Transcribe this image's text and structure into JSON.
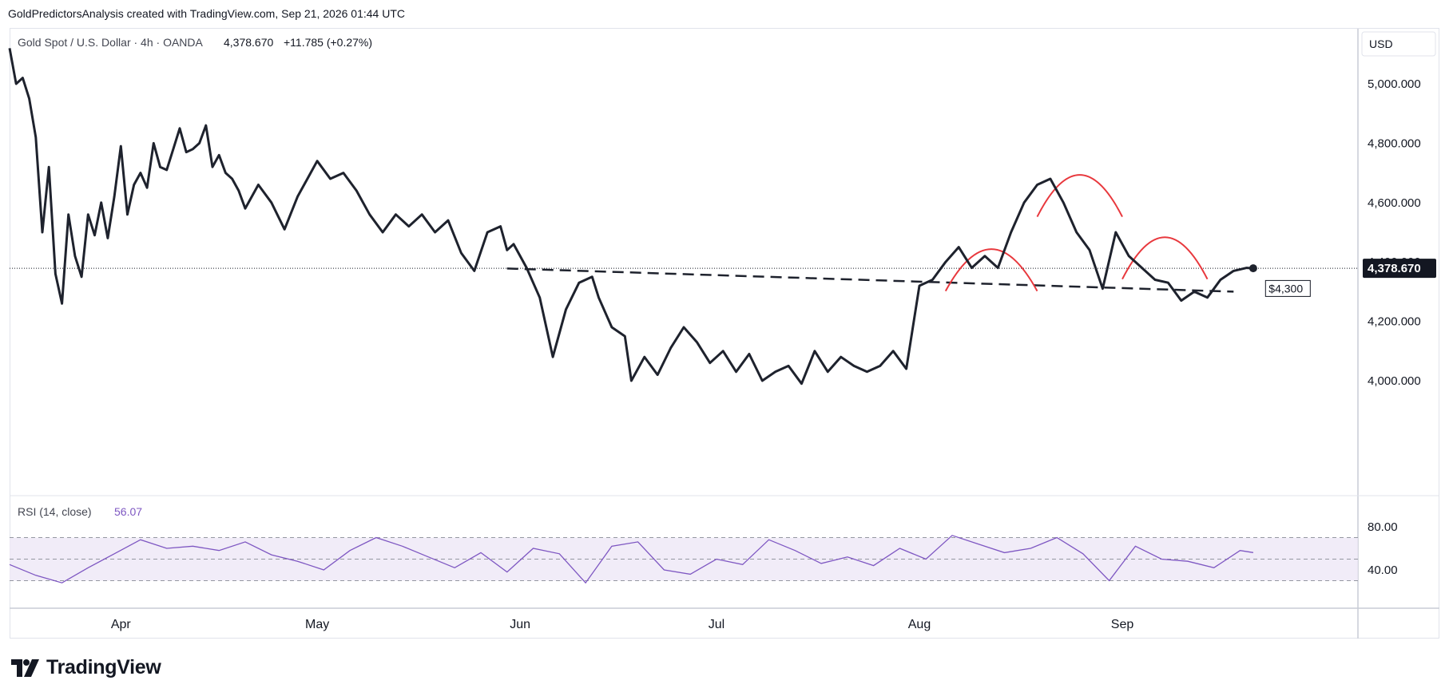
{
  "header": {
    "text": "GoldPredictorsAnalysis created with TradingView.com, Sep 21, 2026 01:44 UTC"
  },
  "legend": {
    "symbol": "Gold Spot / U.S. Dollar · 4h · OANDA",
    "last": "4,378.670",
    "change": "+11.785 (+0.27%)"
  },
  "currency": "USD",
  "price_label": "4,378.670",
  "neckline_label": "$4,300",
  "rsi": {
    "label": "RSI (14, close)",
    "value": "56.07",
    "ticks": [
      "80.00",
      "40.00"
    ]
  },
  "logo": {
    "text": "TradingView"
  },
  "colors": {
    "price_line": "#1e222d",
    "rsi_line": "#7e57c2",
    "rsi_band": "#ede7f6",
    "pattern_arcs": "#e8383d",
    "neckline": "#1e222d"
  },
  "chart_data": [
    {
      "type": "line",
      "series": [
        {
          "name": "Gold Spot / U.S. Dollar",
          "x": [
            "2026-03-15",
            "2026-03-16",
            "2026-03-17",
            "2026-03-18",
            "2026-03-19",
            "2026-03-20",
            "2026-03-21",
            "2026-03-22",
            "2026-03-23",
            "2026-03-24",
            "2026-03-25",
            "2026-03-26",
            "2026-03-27",
            "2026-03-28",
            "2026-03-29",
            "2026-03-30",
            "2026-03-31",
            "2026-04-01",
            "2026-04-02",
            "2026-04-03",
            "2026-04-04",
            "2026-04-05",
            "2026-04-06",
            "2026-04-07",
            "2026-04-08",
            "2026-04-09",
            "2026-04-10",
            "2026-04-11",
            "2026-04-12",
            "2026-04-13",
            "2026-04-14",
            "2026-04-15",
            "2026-04-16",
            "2026-04-17",
            "2026-04-18",
            "2026-04-19",
            "2026-04-20",
            "2026-04-22",
            "2026-04-24",
            "2026-04-26",
            "2026-04-28",
            "2026-04-30",
            "2026-05-01",
            "2026-05-03",
            "2026-05-05",
            "2026-05-07",
            "2026-05-09",
            "2026-05-11",
            "2026-05-13",
            "2026-05-15",
            "2026-05-17",
            "2026-05-19",
            "2026-05-21",
            "2026-05-23",
            "2026-05-25",
            "2026-05-27",
            "2026-05-29",
            "2026-05-30",
            "2026-05-31",
            "2026-06-02",
            "2026-06-04",
            "2026-06-06",
            "2026-06-08",
            "2026-06-10",
            "2026-06-12",
            "2026-06-13",
            "2026-06-15",
            "2026-06-17",
            "2026-06-18",
            "2026-06-20",
            "2026-06-22",
            "2026-06-24",
            "2026-06-26",
            "2026-06-28",
            "2026-06-30",
            "2026-07-02",
            "2026-07-04",
            "2026-07-06",
            "2026-07-08",
            "2026-07-10",
            "2026-07-12",
            "2026-07-14",
            "2026-07-16",
            "2026-07-18",
            "2026-07-20",
            "2026-07-22",
            "2026-07-24",
            "2026-07-26",
            "2026-07-28",
            "2026-07-30",
            "2026-08-01",
            "2026-08-03",
            "2026-08-05",
            "2026-08-07",
            "2026-08-09",
            "2026-08-11",
            "2026-08-13",
            "2026-08-15",
            "2026-08-17",
            "2026-08-19",
            "2026-08-21",
            "2026-08-23",
            "2026-08-25",
            "2026-08-27",
            "2026-08-29",
            "2026-08-31",
            "2026-09-02",
            "2026-09-04",
            "2026-09-06",
            "2026-09-08",
            "2026-09-10",
            "2026-09-12",
            "2026-09-14",
            "2026-09-15",
            "2026-09-16",
            "2026-09-18",
            "2026-09-20",
            "2026-09-21"
          ],
          "values": [
            5120,
            5000,
            5020,
            4950,
            4820,
            4500,
            4720,
            4360,
            4260,
            4560,
            4420,
            4350,
            4560,
            4490,
            4600,
            4480,
            4620,
            4790,
            4560,
            4660,
            4700,
            4650,
            4800,
            4720,
            4710,
            4780,
            4850,
            4770,
            4780,
            4800,
            4860,
            4720,
            4760,
            4700,
            4680,
            4640,
            4580,
            4660,
            4600,
            4510,
            4620,
            4700,
            4740,
            4680,
            4700,
            4640,
            4560,
            4500,
            4560,
            4520,
            4560,
            4500,
            4540,
            4430,
            4370,
            4500,
            4520,
            4440,
            4460,
            4380,
            4280,
            4080,
            4240,
            4330,
            4350,
            4280,
            4180,
            4150,
            4000,
            4080,
            4020,
            4110,
            4180,
            4130,
            4060,
            4100,
            4030,
            4090,
            4000,
            4030,
            4050,
            3990,
            4100,
            4030,
            4080,
            4050,
            4030,
            4050,
            4100,
            4040,
            4320,
            4340,
            4400,
            4450,
            4380,
            4420,
            4380,
            4500,
            4600,
            4660,
            4680,
            4600,
            4500,
            4440,
            4310,
            4500,
            4420,
            4380,
            4340,
            4330,
            4270,
            4300,
            4280,
            4310,
            4340,
            4370,
            4380,
            4378.67
          ]
        }
      ],
      "title": "",
      "xlabel": "",
      "ylabel": "",
      "x_tick_labels": [
        "Apr",
        "May",
        "Jun",
        "Jul",
        "Aug",
        "Sep"
      ],
      "y_tick_labels": [
        "5,000.000",
        "4,800.000",
        "4,600.000",
        "4,400.000",
        "4,200.000",
        "4,000.000"
      ],
      "ylim": [
        3940,
        5150
      ],
      "grid": false,
      "neckline": {
        "x": [
          "2026-05-30",
          "2026-09-18"
        ],
        "y": [
          4378,
          4300
        ]
      },
      "arcs": [
        {
          "x": [
            "2026-08-05",
            "2026-08-19"
          ],
          "peak": 4450
        },
        {
          "x": [
            "2026-08-19",
            "2026-09-01"
          ],
          "peak": 4700
        },
        {
          "x": [
            "2026-09-01",
            "2026-09-14"
          ],
          "peak": 4490
        }
      ]
    },
    {
      "type": "line",
      "series": [
        {
          "name": "RSI (14, close)",
          "x": [
            "2026-03-15",
            "2026-03-19",
            "2026-03-23",
            "2026-03-27",
            "2026-03-31",
            "2026-04-04",
            "2026-04-08",
            "2026-04-12",
            "2026-04-16",
            "2026-04-20",
            "2026-04-24",
            "2026-04-28",
            "2026-05-02",
            "2026-05-06",
            "2026-05-10",
            "2026-05-14",
            "2026-05-18",
            "2026-05-22",
            "2026-05-26",
            "2026-05-30",
            "2026-06-03",
            "2026-06-07",
            "2026-06-11",
            "2026-06-15",
            "2026-06-19",
            "2026-06-23",
            "2026-06-27",
            "2026-07-01",
            "2026-07-05",
            "2026-07-09",
            "2026-07-13",
            "2026-07-17",
            "2026-07-21",
            "2026-07-25",
            "2026-07-29",
            "2026-08-02",
            "2026-08-06",
            "2026-08-10",
            "2026-08-14",
            "2026-08-18",
            "2026-08-22",
            "2026-08-26",
            "2026-08-30",
            "2026-09-03",
            "2026-09-07",
            "2026-09-11",
            "2026-09-15",
            "2026-09-19",
            "2026-09-21"
          ],
          "values": [
            45,
            35,
            28,
            42,
            55,
            68,
            60,
            62,
            58,
            66,
            54,
            48,
            40,
            58,
            70,
            62,
            52,
            42,
            56,
            38,
            60,
            55,
            28,
            62,
            66,
            40,
            36,
            50,
            45,
            68,
            58,
            46,
            52,
            44,
            60,
            50,
            72,
            64,
            56,
            60,
            70,
            55,
            30,
            62,
            50,
            48,
            42,
            58,
            56.07
          ]
        }
      ],
      "ylim": [
        10,
        95
      ],
      "bands": [
        30,
        70
      ],
      "y_tick_labels": [
        "80.00",
        "40.00"
      ]
    }
  ]
}
